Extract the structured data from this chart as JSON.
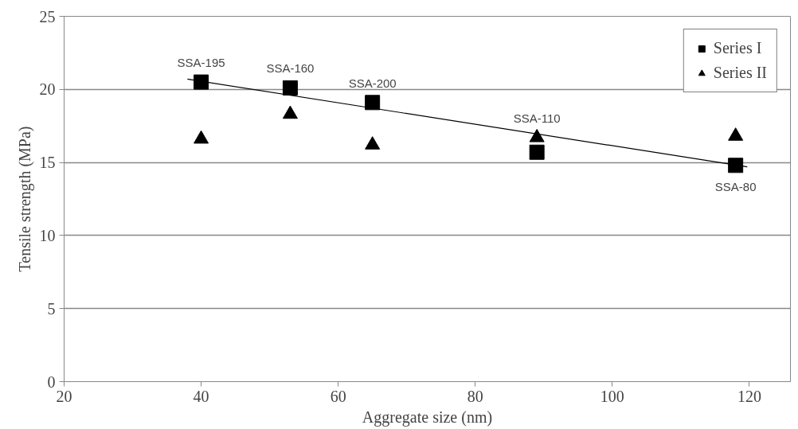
{
  "chart_data": {
    "type": "scatter",
    "xlabel": "Aggregate size (nm)",
    "ylabel": "Tensile strength (MPa)",
    "xlim": [
      20,
      126
    ],
    "xticks": [
      20,
      40,
      60,
      80,
      100,
      120
    ],
    "ylim": [
      0,
      25
    ],
    "yticks": [
      0,
      5,
      10,
      15,
      20,
      25
    ],
    "grid": "y",
    "legend": "top right",
    "series": [
      {
        "name": "Series I",
        "color": "#000000",
        "marker": "square",
        "x": [
          40,
          53,
          65,
          89,
          118
        ],
        "values": [
          20.5,
          20.1,
          19.1,
          15.7,
          14.8
        ]
      },
      {
        "name": "Series II",
        "color": "#000000",
        "marker": "triangle",
        "x": [
          40,
          53,
          65,
          89,
          118
        ],
        "values": [
          16.6,
          18.3,
          16.2,
          16.7,
          16.8
        ]
      },
      {
        "type": "line",
        "color": "#000000",
        "marker": "none",
        "x": [
          38,
          119.7
        ],
        "values": [
          20.7,
          14.7
        ]
      }
    ],
    "annotations": [
      {
        "text": "SSA-195",
        "x": 40,
        "y": 20.5
      },
      {
        "text": "SSA-160",
        "x": 53,
        "y": 20.1
      },
      {
        "text": "SSA-200",
        "x": 65,
        "y": 19.1
      },
      {
        "text": "SSA-110",
        "x": 89,
        "y": 15.7
      },
      {
        "text": "SSA-80",
        "x": 118,
        "y": 14.8
      }
    ]
  }
}
